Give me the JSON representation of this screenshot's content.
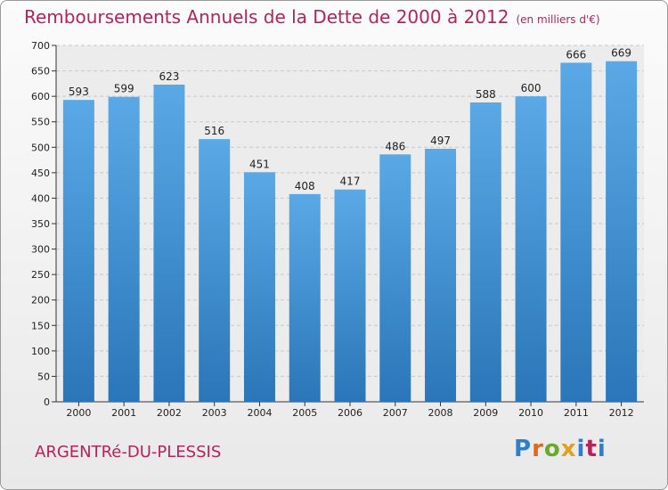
{
  "header": {
    "title": "Remboursements Annuels de la Dette de 2000 à 2012",
    "unit": "(en milliers d'€)"
  },
  "footer": {
    "commune": "ARGENTRé-DU-PLESSIS",
    "logo_letters": [
      "P",
      "r",
      "o",
      "x",
      "i",
      "t",
      "i"
    ]
  },
  "colors": {
    "title": "#b4235a",
    "bar_light": "#5aa9e6",
    "bar_dark": "#2a76b8",
    "grid": "#c8c8c8"
  },
  "chart_data": {
    "type": "bar",
    "title": "Remboursements Annuels de la Dette de 2000 à 2012",
    "categories": [
      "2000",
      "2001",
      "2002",
      "2003",
      "2004",
      "2005",
      "2006",
      "2007",
      "2008",
      "2009",
      "2010",
      "2011",
      "2012"
    ],
    "values": [
      593,
      599,
      623,
      516,
      451,
      408,
      417,
      486,
      497,
      588,
      600,
      666,
      669
    ],
    "ylim": [
      0,
      700
    ],
    "yticks": [
      0,
      50,
      100,
      150,
      200,
      250,
      300,
      350,
      400,
      450,
      500,
      550,
      600,
      650,
      700
    ],
    "grid": true,
    "data_labels": true
  }
}
